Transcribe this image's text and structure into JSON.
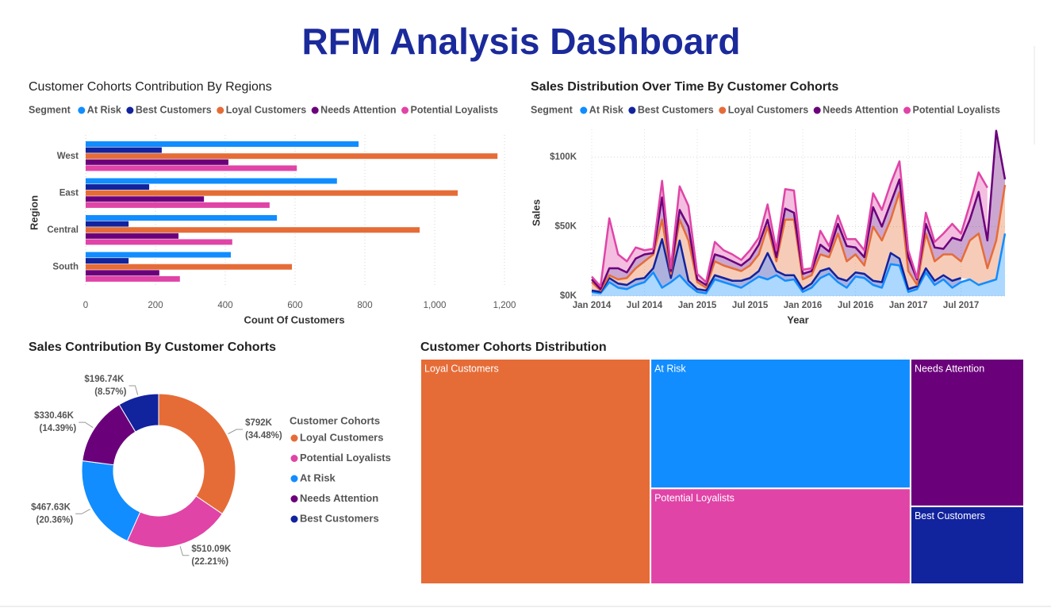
{
  "title": "RFM Analysis Dashboard",
  "chart_data": [
    {
      "type": "bar",
      "orientation": "horizontal",
      "title": "Customer Cohorts Contribution By Regions",
      "legend_title": "Segment",
      "categories": [
        "West",
        "East",
        "Central",
        "South"
      ],
      "series": [
        {
          "name": "At Risk",
          "color": "#118dff",
          "values": [
            782,
            720,
            548,
            416
          ]
        },
        {
          "name": "Best Customers",
          "color": "#12239e",
          "values": [
            218,
            182,
            123,
            123
          ]
        },
        {
          "name": "Loyal Customers",
          "color": "#e66c37",
          "values": [
            1180,
            1066,
            957,
            591
          ]
        },
        {
          "name": "Needs Attention",
          "color": "#6b007b",
          "values": [
            409,
            339,
            266,
            211
          ]
        },
        {
          "name": "Potential Loyalists",
          "color": "#e044a7",
          "values": [
            605,
            527,
            420,
            270
          ]
        }
      ],
      "xlabel": "Count Of Customers",
      "ylabel": "Region",
      "xlim": [
        0,
        1200
      ],
      "xticks": [
        0,
        200,
        400,
        600,
        800,
        {
          "value": 1000,
          "label": "1,000"
        },
        {
          "value": 1200,
          "label": "1,200"
        }
      ],
      "grid": true
    },
    {
      "type": "area",
      "stacked": true,
      "title": "Sales Distribution Over Time By Customer Cohorts",
      "legend_title": "Segment",
      "x": [
        "2014-01",
        "2014-02",
        "2014-03",
        "2014-04",
        "2014-05",
        "2014-06",
        "2014-07",
        "2014-08",
        "2014-09",
        "2014-10",
        "2014-11",
        "2014-12",
        "2015-01",
        "2015-02",
        "2015-03",
        "2015-04",
        "2015-05",
        "2015-06",
        "2015-07",
        "2015-08",
        "2015-09",
        "2015-10",
        "2015-11",
        "2015-12",
        "2016-01",
        "2016-02",
        "2016-03",
        "2016-04",
        "2016-05",
        "2016-06",
        "2016-07",
        "2016-08",
        "2016-09",
        "2016-10",
        "2016-11",
        "2016-12",
        "2017-01",
        "2017-02",
        "2017-03",
        "2017-04",
        "2017-05",
        "2017-06",
        "2017-07",
        "2017-08",
        "2017-09",
        "2017-10",
        "2017-11",
        "2017-12"
      ],
      "series": [
        {
          "name": "At Risk",
          "color": "#118dff",
          "values": [
            3000,
            2000,
            10000,
            6000,
            5000,
            8000,
            10000,
            17000,
            6000,
            10000,
            15000,
            8000,
            3000,
            2000,
            12000,
            10000,
            8000,
            6000,
            10000,
            14000,
            12000,
            15000,
            11000,
            12000,
            3000,
            6000,
            13000,
            16000,
            10000,
            6000,
            14000,
            13000,
            8000,
            6000,
            23000,
            22000,
            3000,
            5000,
            17000,
            8000,
            12000,
            6000,
            10000,
            12000,
            8000,
            10000,
            12000,
            45000
          ]
        },
        {
          "name": "Best Customers",
          "color": "#12239e",
          "values": [
            1000,
            1000,
            3000,
            3000,
            3000,
            4000,
            3000,
            3000,
            35000,
            3000,
            25000,
            3000,
            2000,
            2000,
            3000,
            3000,
            3000,
            5000,
            3000,
            4000,
            19000,
            3000,
            4000,
            3000,
            2000,
            3000,
            5000,
            4000,
            3000,
            5000,
            3000,
            3000,
            3000,
            4000,
            8000,
            5000,
            2000,
            2000,
            3000,
            3000,
            3000,
            5000,
            3000,
            null,
            null,
            null,
            null,
            null
          ]
        },
        {
          "name": "Loyal Customers",
          "color": "#e66c37",
          "values": [
            6000,
            1000,
            2000,
            3000,
            5000,
            8000,
            12000,
            10000,
            14000,
            3000,
            15000,
            29000,
            5000,
            2000,
            10000,
            9000,
            9000,
            7000,
            9000,
            12000,
            19000,
            7000,
            40000,
            40000,
            7000,
            6000,
            12000,
            8000,
            32000,
            14000,
            13000,
            6000,
            39000,
            30000,
            24000,
            48000,
            13000,
            1000,
            25000,
            14000,
            15000,
            19000,
            12000,
            28000,
            37000,
            10000,
            28000,
            35000
          ]
        },
        {
          "name": "Needs Attention",
          "color": "#6b007b",
          "values": [
            2000,
            1000,
            5000,
            8000,
            4000,
            7000,
            5000,
            1000,
            16000,
            2000,
            7000,
            10000,
            2000,
            2000,
            5000,
            6000,
            5000,
            4000,
            5000,
            7000,
            5000,
            3000,
            8000,
            5000,
            4000,
            3000,
            7000,
            4000,
            7000,
            11000,
            5000,
            6000,
            14000,
            10000,
            12000,
            9000,
            10000,
            4000,
            7000,
            10000,
            4000,
            12000,
            15000,
            15000,
            30000,
            20000,
            79000,
            4000
          ]
        },
        {
          "name": "Potential Loyalists",
          "color": "#e044a7",
          "values": [
            2000,
            2000,
            36000,
            10000,
            8000,
            8000,
            3000,
            3000,
            12000,
            2000,
            17000,
            15000,
            4000,
            2000,
            9000,
            5000,
            5000,
            4000,
            6000,
            5000,
            11000,
            5000,
            14000,
            16000,
            3000,
            2000,
            10000,
            4000,
            6000,
            5000,
            6000,
            5000,
            10000,
            12000,
            14000,
            13000,
            5000,
            1000,
            8000,
            4000,
            11000,
            10000,
            5000,
            11000,
            14000,
            38000,
            null,
            null
          ]
        }
      ],
      "xlabel": "Year",
      "ylabel": "Sales",
      "xticks": [
        {
          "value": "2014-01",
          "label": "Jan 2014"
        },
        {
          "value": "2014-07",
          "label": "Jul 2014"
        },
        {
          "value": "2015-01",
          "label": "Jan 2015"
        },
        {
          "value": "2015-07",
          "label": "Jul 2015"
        },
        {
          "value": "2016-01",
          "label": "Jan 2016"
        },
        {
          "value": "2016-07",
          "label": "Jul 2016"
        },
        {
          "value": "2017-01",
          "label": "Jan 2017"
        },
        {
          "value": "2017-07",
          "label": "Jul 2017"
        }
      ],
      "ylim": [
        0,
        120000
      ],
      "yticks": [
        {
          "value": 0,
          "label": "$0K"
        },
        {
          "value": 50000,
          "label": "$50K"
        },
        {
          "value": 100000,
          "label": "$100K"
        }
      ],
      "grid": true
    },
    {
      "type": "donut",
      "title": "Sales Contribution By Customer Cohorts",
      "legend_title": "Customer Cohorts",
      "categories": [
        "Loyal Customers",
        "Potential Loyalists",
        "At Risk",
        "Needs Attention",
        "Best Customers"
      ],
      "values": [
        792000,
        510090,
        467630,
        330460,
        196740
      ],
      "value_labels": [
        "$792K (34.48%)",
        "$510.09K (22.21%)",
        "$467.63K (20.36%)",
        "$330.46K (14.39%)",
        "$196.74K (8.57%)"
      ],
      "colors": [
        "#e66c37",
        "#e044a7",
        "#118dff",
        "#6b007b",
        "#12239e"
      ]
    },
    {
      "type": "treemap",
      "title": "Customer Cohorts Distribution",
      "categories": [
        "Loyal Customers",
        "At Risk",
        "Potential Loyalists",
        "Needs Attention",
        "Best Customers"
      ],
      "values": [
        3794,
        2466,
        1822,
        1225,
        646
      ],
      "colors": [
        "#e66c37",
        "#118dff",
        "#e044a7",
        "#6b007b",
        "#12239e"
      ]
    }
  ]
}
